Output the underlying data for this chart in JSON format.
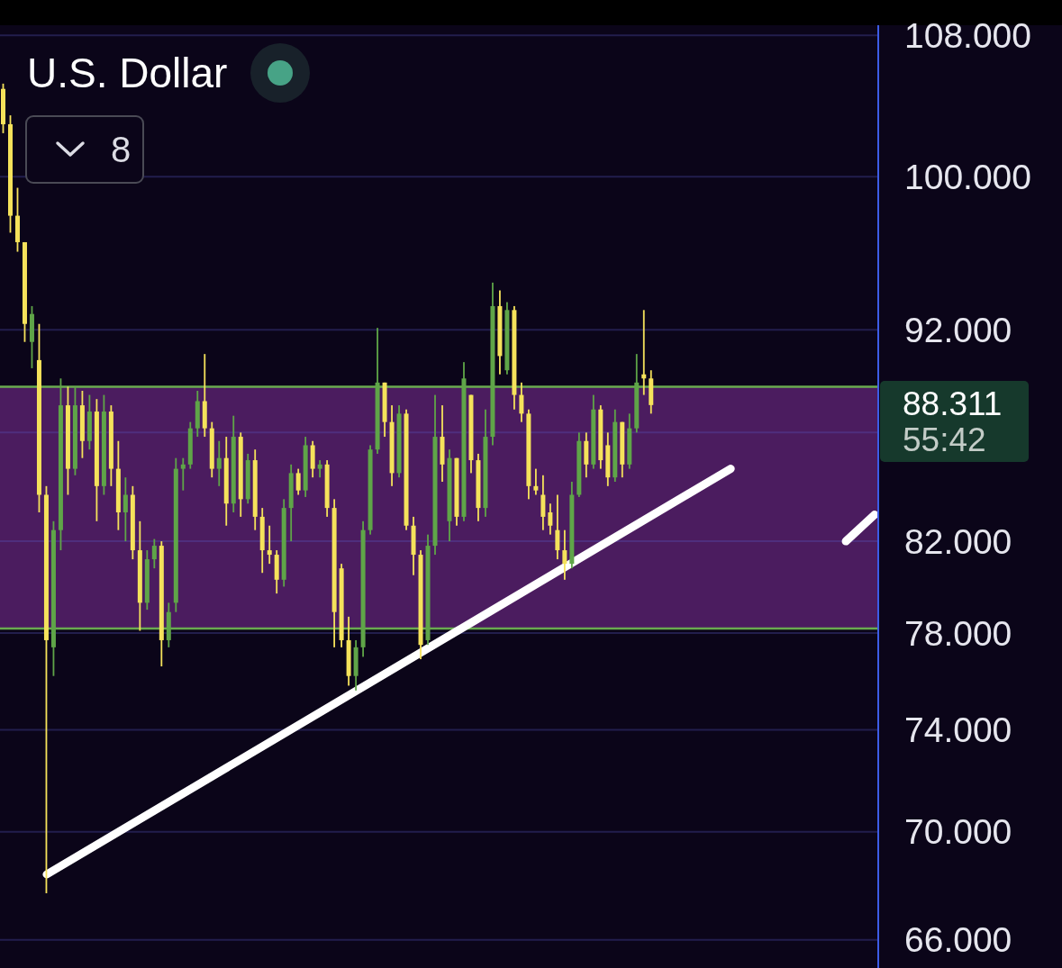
{
  "chart_data": {
    "type": "candlestick",
    "title": "U.S. Dollar",
    "categories": [
      null,
      null,
      null,
      null,
      null,
      null,
      null,
      null,
      null,
      null,
      null,
      null,
      null,
      null,
      null,
      null,
      null,
      null,
      null,
      null,
      null,
      null,
      null,
      null,
      null,
      null,
      null,
      null,
      null,
      null,
      null,
      null,
      null,
      null,
      null,
      null,
      null,
      null,
      null,
      null,
      null,
      null,
      null,
      null,
      null,
      null,
      null,
      null,
      null,
      null,
      null,
      null,
      null,
      null,
      null,
      null,
      null,
      null,
      null,
      null,
      null,
      null,
      null,
      null,
      null,
      null,
      null,
      null,
      null,
      null,
      null,
      null,
      null,
      null,
      null,
      null,
      null,
      null,
      null,
      null,
      null,
      null,
      null,
      null,
      null,
      null,
      null,
      null,
      null,
      null,
      null,
      null,
      null,
      null,
      null,
      null,
      null,
      null,
      null,
      null,
      null,
      null,
      null,
      null,
      null,
      null,
      null,
      null,
      null,
      null,
      null,
      null,
      null,
      null,
      null,
      null,
      null,
      null,
      null,
      null,
      null,
      null
    ],
    "ohlc": [
      [
        104.9,
        105.2,
        102.4,
        102.9
      ],
      [
        102.9,
        103.4,
        97.0,
        97.9
      ],
      [
        97.9,
        99.4,
        96.0,
        96.5
      ],
      [
        96.5,
        96.5,
        91.4,
        92.3
      ],
      [
        91.4,
        93.2,
        90.1,
        92.8
      ],
      [
        90.5,
        92.3,
        83.3,
        84.1
      ],
      [
        84.1,
        84.5,
        67.7,
        77.7
      ],
      [
        77.4,
        82.9,
        76.2,
        82.5
      ],
      [
        82.5,
        89.6,
        81.6,
        88.3
      ],
      [
        88.3,
        89.2,
        84.1,
        85.3
      ],
      [
        85.3,
        89.2,
        85.0,
        88.3
      ],
      [
        88.3,
        89.0,
        85.8,
        86.6
      ],
      [
        86.6,
        88.8,
        86.2,
        88.0
      ],
      [
        88.0,
        88.6,
        82.9,
        84.5
      ],
      [
        84.5,
        88.8,
        84.1,
        88.0
      ],
      [
        88.0,
        88.3,
        84.5,
        85.3
      ],
      [
        85.3,
        86.6,
        82.5,
        83.3
      ],
      [
        83.3,
        84.9,
        82.0,
        84.1
      ],
      [
        84.1,
        84.5,
        81.2,
        81.6
      ],
      [
        81.6,
        82.9,
        78.1,
        79.3
      ],
      [
        79.3,
        81.6,
        79.0,
        81.2
      ],
      [
        81.2,
        82.1,
        80.8,
        81.8
      ],
      [
        81.8,
        82.0,
        76.6,
        77.7
      ],
      [
        77.7,
        79.3,
        77.4,
        78.9
      ],
      [
        79.3,
        85.8,
        78.9,
        85.3
      ],
      [
        85.3,
        85.8,
        84.3,
        85.5
      ],
      [
        85.5,
        87.5,
        85.3,
        87.2
      ],
      [
        87.2,
        89.0,
        86.8,
        88.5
      ],
      [
        88.5,
        90.8,
        86.8,
        87.2
      ],
      [
        87.2,
        87.5,
        84.9,
        85.3
      ],
      [
        85.3,
        86.6,
        84.5,
        85.8
      ],
      [
        85.8,
        86.8,
        82.7,
        83.7
      ],
      [
        83.7,
        87.8,
        83.3,
        86.8
      ],
      [
        86.8,
        87.0,
        83.1,
        83.9
      ],
      [
        83.9,
        86.0,
        83.7,
        85.7
      ],
      [
        85.7,
        86.2,
        82.5,
        83.1
      ],
      [
        83.1,
        83.5,
        80.6,
        81.6
      ],
      [
        81.6,
        82.7,
        81.0,
        81.4
      ],
      [
        81.4,
        81.6,
        79.7,
        80.3
      ],
      [
        80.3,
        83.9,
        80.0,
        83.5
      ],
      [
        83.5,
        85.5,
        82.0,
        85.1
      ],
      [
        85.1,
        85.3,
        84.1,
        84.3
      ],
      [
        84.3,
        86.8,
        84.0,
        86.4
      ],
      [
        86.4,
        86.6,
        84.9,
        85.3
      ],
      [
        85.3,
        85.7,
        84.9,
        85.5
      ],
      [
        85.5,
        85.7,
        83.1,
        83.5
      ],
      [
        83.5,
        83.9,
        77.4,
        78.9
      ],
      [
        80.8,
        81.0,
        77.4,
        77.7
      ],
      [
        77.7,
        78.7,
        75.8,
        76.2
      ],
      [
        76.2,
        77.7,
        75.6,
        77.4
      ],
      [
        77.4,
        82.9,
        77.0,
        82.5
      ],
      [
        82.5,
        86.4,
        82.3,
        86.2
      ],
      [
        86.2,
        92.1,
        86.0,
        89.4
      ],
      [
        89.4,
        89.4,
        86.8,
        87.5
      ],
      [
        87.5,
        88.3,
        84.5,
        85.1
      ],
      [
        85.1,
        88.3,
        84.9,
        87.9
      ],
      [
        87.9,
        88.1,
        82.5,
        82.7
      ],
      [
        82.7,
        83.1,
        80.5,
        81.4
      ],
      [
        81.4,
        81.6,
        76.9,
        77.5
      ],
      [
        77.7,
        82.3,
        77.5,
        81.8
      ],
      [
        81.8,
        88.8,
        81.4,
        86.8
      ],
      [
        86.8,
        88.3,
        84.7,
        85.5
      ],
      [
        82.9,
        86.2,
        82.0,
        85.8
      ],
      [
        85.8,
        85.8,
        82.7,
        83.1
      ],
      [
        83.1,
        90.4,
        82.9,
        89.6
      ],
      [
        88.8,
        88.8,
        85.1,
        85.7
      ],
      [
        85.7,
        86.0,
        82.9,
        83.5
      ],
      [
        83.5,
        88.1,
        83.1,
        86.8
      ],
      [
        86.8,
        94.4,
        86.4,
        93.2
      ],
      [
        93.2,
        94.0,
        89.8,
        90.7
      ],
      [
        90.0,
        93.4,
        89.8,
        93.0
      ],
      [
        93.0,
        93.2,
        88.1,
        88.8
      ],
      [
        88.8,
        89.4,
        87.5,
        87.9
      ],
      [
        87.9,
        88.1,
        83.9,
        84.5
      ],
      [
        84.5,
        85.3,
        84.1,
        84.3
      ],
      [
        84.1,
        85.0,
        82.5,
        83.1
      ],
      [
        83.3,
        83.7,
        82.3,
        82.7
      ],
      [
        82.5,
        84.1,
        81.2,
        81.6
      ],
      [
        81.6,
        82.5,
        80.3,
        81.0
      ],
      [
        81.0,
        84.7,
        80.8,
        84.1
      ],
      [
        84.1,
        87.0,
        84.0,
        86.6
      ],
      [
        86.6,
        87.0,
        84.9,
        85.5
      ],
      [
        85.5,
        88.8,
        85.3,
        88.1
      ],
      [
        88.1,
        88.3,
        85.3,
        85.7
      ],
      [
        86.4,
        87.0,
        84.5,
        84.9
      ],
      [
        84.9,
        88.1,
        84.7,
        87.5
      ],
      [
        87.5,
        87.5,
        84.9,
        85.5
      ],
      [
        85.5,
        87.9,
        85.3,
        87.2
      ],
      [
        87.2,
        90.8,
        87.0,
        89.4
      ],
      [
        89.8,
        93.0,
        88.8,
        89.6
      ],
      [
        89.6,
        90.0,
        87.9,
        88.311
      ],
      null,
      null,
      null,
      null,
      null,
      null,
      null,
      null,
      null,
      null,
      null,
      null,
      null,
      null,
      null,
      null,
      null,
      null,
      null,
      null,
      null,
      null,
      null,
      null,
      null,
      null,
      null,
      null,
      null,
      null,
      null
    ],
    "colors": [
      "#f5e25b",
      "#f5e25b",
      "#f5e25b",
      "#f5e25b",
      "#5fa548",
      "#f5e25b",
      "#f5e25b",
      "#5fa548",
      "#5fa548",
      "#f5e25b",
      "#5fa548",
      "#f5e25b",
      "#5fa548",
      "#f5e25b",
      "#5fa548",
      "#f5e25b",
      "#f5e25b",
      "#5fa548",
      "#f5e25b",
      "#f5e25b",
      "#5fa548",
      "#5fa548",
      "#f5e25b",
      "#5fa548",
      "#5fa548",
      "#5fa548",
      "#5fa548",
      "#5fa548",
      "#f5e25b",
      "#f5e25b",
      "#5fa548",
      "#f5e25b",
      "#5fa548",
      "#f5e25b",
      "#5fa548",
      "#f5e25b",
      "#f5e25b",
      "#f5e25b",
      "#f5e25b",
      "#5fa548",
      "#5fa548",
      "#f5e25b",
      "#5fa548",
      "#f5e25b",
      "#5fa548",
      "#f5e25b",
      "#f5e25b",
      "#f5e25b",
      "#f5e25b",
      "#5fa548",
      "#5fa548",
      "#5fa548",
      "#5fa548",
      "#f5e25b",
      "#f5e25b",
      "#5fa548",
      "#f5e25b",
      "#f5e25b",
      "#f5e25b",
      "#5fa548",
      "#5fa548",
      "#f5e25b",
      "#5fa548",
      "#f5e25b",
      "#5fa548",
      "#f5e25b",
      "#f5e25b",
      "#5fa548",
      "#5fa548",
      "#f5e25b",
      "#5fa548",
      "#f5e25b",
      "#f5e25b",
      "#f5e25b",
      "#f5e25b",
      "#f5e25b",
      "#f5e25b",
      "#f5e25b",
      "#f5e25b",
      "#5fa548",
      "#5fa548",
      "#f5e25b",
      "#5fa548",
      "#f5e25b",
      "#f5e25b",
      "#5fa548",
      "#f5e25b",
      "#5fa548",
      "#5fa548",
      "#f5e25b",
      "#f5e25b",
      null,
      null,
      null,
      null,
      null,
      null,
      null,
      null,
      null,
      null,
      null,
      null,
      null,
      null,
      null,
      null,
      null,
      null,
      null,
      null,
      null,
      null,
      null,
      null,
      null,
      null,
      null,
      null,
      null,
      null,
      null
    ],
    "series": [
      {
        "type": "line",
        "color": "#ffffff",
        "values": [
          null,
          null,
          null,
          null,
          null,
          null,
          68.4,
          null,
          null,
          null,
          null,
          null,
          null,
          null,
          null,
          null,
          null,
          null,
          null,
          null,
          null,
          null,
          null,
          null,
          null,
          null,
          null,
          null,
          null,
          null,
          null,
          null,
          null,
          null,
          null,
          null,
          null,
          null,
          null,
          null,
          null,
          null,
          null,
          null,
          null,
          null,
          null,
          null,
          null,
          null,
          null,
          null,
          null,
          null,
          null,
          null,
          null,
          null,
          null,
          null,
          null,
          null,
          null,
          null,
          null,
          null,
          null,
          null,
          null,
          null,
          null,
          null,
          null,
          null,
          null,
          null,
          null,
          null,
          null,
          null,
          null,
          null,
          null,
          null,
          null,
          null,
          null,
          null,
          null,
          null,
          null,
          null,
          null,
          null,
          null,
          null,
          null,
          null,
          null,
          null,
          null,
          85.3,
          null,
          null,
          null,
          null,
          null,
          null,
          null,
          null,
          null,
          null,
          null,
          null,
          null,
          null,
          null,
          null,
          null,
          null,
          null,
          null
        ]
      },
      {
        "type": "line",
        "color": "#ffffff",
        "values": [
          null,
          null,
          null,
          null,
          null,
          null,
          null,
          null,
          null,
          null,
          null,
          null,
          null,
          null,
          null,
          null,
          null,
          null,
          null,
          null,
          null,
          null,
          null,
          null,
          null,
          null,
          null,
          null,
          null,
          null,
          null,
          null,
          null,
          null,
          null,
          null,
          null,
          null,
          null,
          null,
          null,
          null,
          null,
          null,
          null,
          null,
          null,
          null,
          null,
          null,
          null,
          null,
          null,
          null,
          null,
          null,
          null,
          null,
          null,
          null,
          null,
          null,
          null,
          null,
          null,
          null,
          null,
          null,
          null,
          null,
          null,
          null,
          null,
          null,
          null,
          null,
          null,
          null,
          null,
          null,
          null,
          null,
          null,
          null,
          null,
          null,
          null,
          null,
          null,
          null,
          null,
          null,
          null,
          null,
          null,
          null,
          null,
          null,
          null,
          null,
          null,
          null,
          null,
          null,
          null,
          null,
          null,
          null,
          null,
          null,
          null,
          null,
          null,
          null,
          null,
          null,
          null,
          82.0,
          null,
          null,
          null,
          83.2
        ]
      }
    ],
    "ylim": [
      65,
      108.6
    ],
    "yticks": [
      {
        "value": 66,
        "label": "66.000"
      },
      {
        "value": 70,
        "label": "70.000"
      },
      {
        "value": 74,
        "label": "74.000"
      },
      {
        "value": 78,
        "label": "78.000"
      },
      {
        "value": 82,
        "label": "82.000"
      },
      {
        "value": 87,
        "label": null
      },
      {
        "value": 92,
        "label": "92.000"
      },
      {
        "value": 100,
        "label": "100.000"
      },
      {
        "value": 108,
        "label": "108.000"
      }
    ],
    "log": true,
    "grid": "y",
    "tick_labels": "y",
    "bands": [
      {
        "axis": "y",
        "from": 78.2,
        "to": 89.2,
        "color": "#4b1c5f"
      }
    ],
    "ref_lines": [
      {
        "axis": "y",
        "value": 89.2,
        "color": "#6aab4f"
      },
      {
        "axis": "y",
        "value": 78.2,
        "color": "#6aab4f"
      }
    ],
    "annotations": [
      "88.311",
      "55:42",
      "8"
    ]
  }
}
